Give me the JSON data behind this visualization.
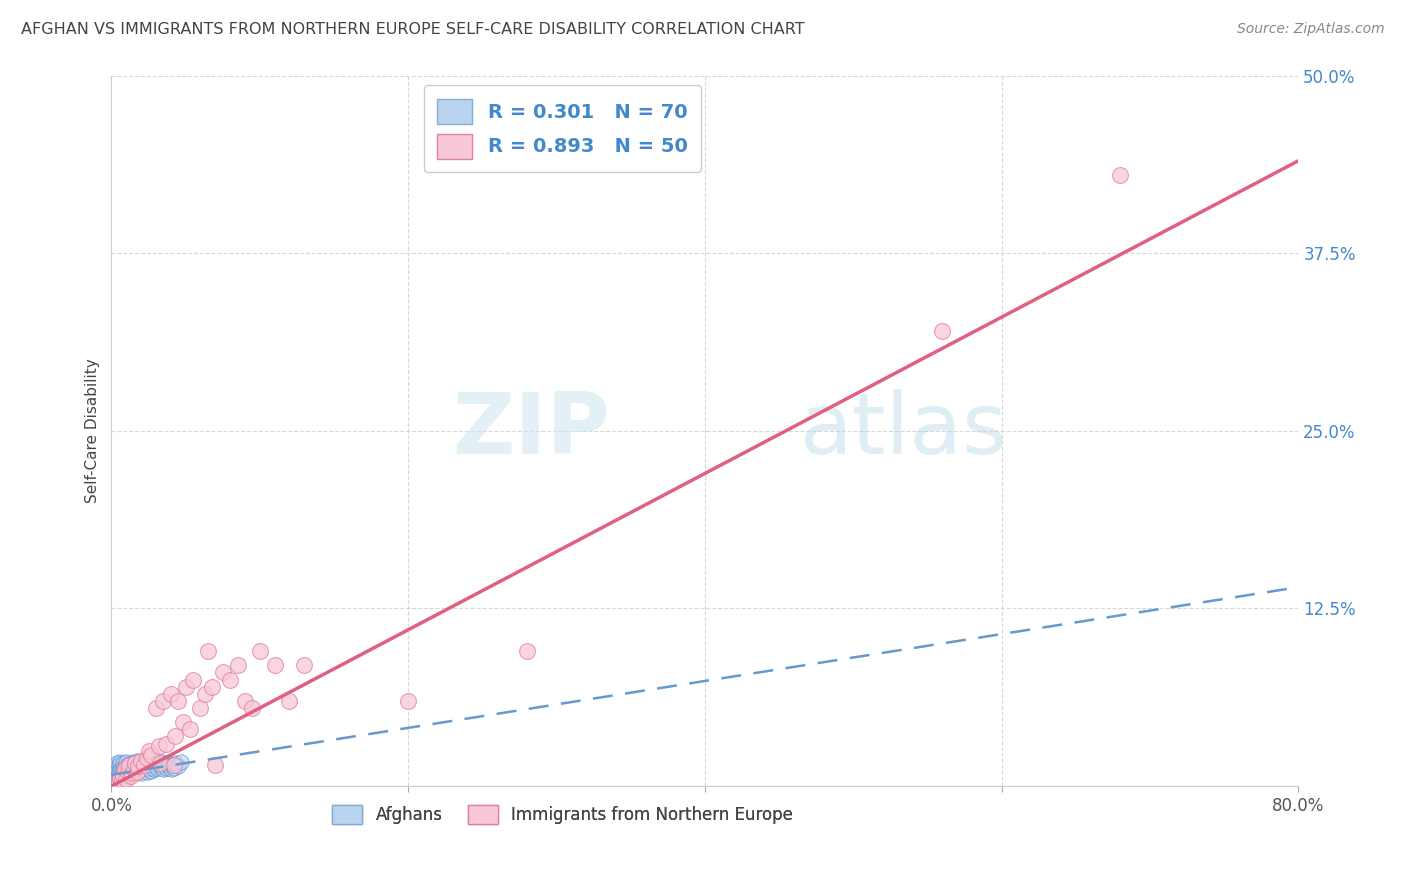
{
  "title": "AFGHAN VS IMMIGRANTS FROM NORTHERN EUROPE SELF-CARE DISABILITY CORRELATION CHART",
  "source": "Source: ZipAtlas.com",
  "xlabel": "",
  "ylabel": "Self-Care Disability",
  "xlim": [
    0,
    0.8
  ],
  "ylim": [
    0,
    0.5
  ],
  "xticks": [
    0.0,
    0.2,
    0.4,
    0.6,
    0.8
  ],
  "yticks": [
    0.0,
    0.125,
    0.25,
    0.375,
    0.5
  ],
  "ytick_labels": [
    "",
    "12.5%",
    "25.0%",
    "37.5%",
    "50.0%"
  ],
  "xtick_labels": [
    "0.0%",
    "",
    "",
    "",
    "80.0%"
  ],
  "legend_label1": "R = 0.301   N = 70",
  "legend_label2": "R = 0.893   N = 50",
  "legend_color1": "#aec6e8",
  "legend_color2": "#f4b8c8",
  "scatter_blue_x": [
    0.001,
    0.001,
    0.002,
    0.002,
    0.002,
    0.003,
    0.003,
    0.003,
    0.004,
    0.004,
    0.004,
    0.005,
    0.005,
    0.005,
    0.006,
    0.006,
    0.006,
    0.007,
    0.007,
    0.008,
    0.008,
    0.008,
    0.009,
    0.009,
    0.01,
    0.01,
    0.01,
    0.011,
    0.011,
    0.012,
    0.012,
    0.013,
    0.013,
    0.014,
    0.014,
    0.015,
    0.015,
    0.016,
    0.016,
    0.017,
    0.017,
    0.018,
    0.019,
    0.02,
    0.02,
    0.021,
    0.022,
    0.023,
    0.024,
    0.025,
    0.026,
    0.027,
    0.028,
    0.029,
    0.03,
    0.031,
    0.032,
    0.033,
    0.034,
    0.035,
    0.036,
    0.037,
    0.038,
    0.039,
    0.04,
    0.041,
    0.042,
    0.043,
    0.045,
    0.047
  ],
  "scatter_blue_y": [
    0.005,
    0.01,
    0.003,
    0.008,
    0.012,
    0.004,
    0.009,
    0.014,
    0.006,
    0.011,
    0.016,
    0.005,
    0.01,
    0.015,
    0.007,
    0.012,
    0.017,
    0.008,
    0.013,
    0.006,
    0.011,
    0.016,
    0.009,
    0.014,
    0.007,
    0.012,
    0.017,
    0.01,
    0.015,
    0.008,
    0.013,
    0.011,
    0.016,
    0.009,
    0.014,
    0.012,
    0.017,
    0.01,
    0.015,
    0.013,
    0.018,
    0.011,
    0.016,
    0.009,
    0.014,
    0.012,
    0.017,
    0.015,
    0.01,
    0.013,
    0.016,
    0.011,
    0.014,
    0.012,
    0.015,
    0.013,
    0.016,
    0.014,
    0.017,
    0.012,
    0.015,
    0.013,
    0.016,
    0.014,
    0.012,
    0.015,
    0.013,
    0.016,
    0.014,
    0.017
  ],
  "scatter_pink_x": [
    0.005,
    0.006,
    0.007,
    0.008,
    0.009,
    0.01,
    0.011,
    0.012,
    0.013,
    0.014,
    0.015,
    0.016,
    0.017,
    0.018,
    0.02,
    0.022,
    0.024,
    0.025,
    0.027,
    0.03,
    0.032,
    0.033,
    0.035,
    0.037,
    0.04,
    0.042,
    0.043,
    0.045,
    0.048,
    0.05,
    0.053,
    0.055,
    0.06,
    0.063,
    0.065,
    0.068,
    0.07,
    0.075,
    0.08,
    0.085,
    0.09,
    0.095,
    0.1,
    0.11,
    0.12,
    0.13,
    0.2,
    0.28,
    0.56,
    0.68
  ],
  "scatter_pink_y": [
    0.003,
    0.006,
    0.004,
    0.008,
    0.012,
    0.005,
    0.01,
    0.015,
    0.007,
    0.009,
    0.012,
    0.016,
    0.01,
    0.014,
    0.018,
    0.015,
    0.02,
    0.025,
    0.022,
    0.055,
    0.028,
    0.016,
    0.06,
    0.03,
    0.065,
    0.015,
    0.035,
    0.06,
    0.045,
    0.07,
    0.04,
    0.075,
    0.055,
    0.065,
    0.095,
    0.07,
    0.015,
    0.08,
    0.075,
    0.085,
    0.06,
    0.055,
    0.095,
    0.085,
    0.06,
    0.085,
    0.06,
    0.095,
    0.32,
    0.43
  ],
  "blue_trendline_x": [
    0.0,
    0.8
  ],
  "blue_trendline_y": [
    0.008,
    0.14
  ],
  "pink_trendline_x": [
    0.0,
    0.8
  ],
  "pink_trendline_y": [
    0.0,
    0.44
  ],
  "bottom_legend_labels": [
    "Afghans",
    "Immigrants from Northern Europe"
  ],
  "watermark_zip": "ZIP",
  "watermark_atlas": "atlas",
  "background_color": "#ffffff",
  "grid_color": "#d8d8d8",
  "title_color": "#444444",
  "tick_label_color_right": "#4488cc",
  "tick_label_color_bottom": "#555555"
}
